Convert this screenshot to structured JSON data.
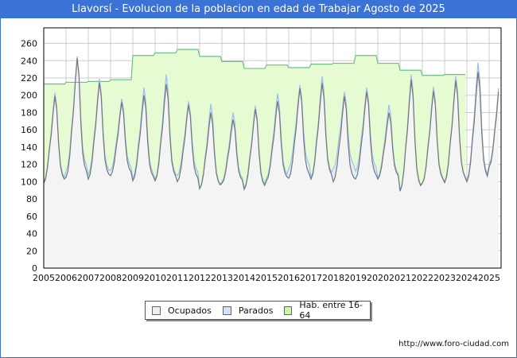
{
  "header": {
    "title": "Llavorsí - Evolucion de la poblacion en edad de Trabajar Agosto de 2025"
  },
  "legend": {
    "items": [
      {
        "label": "Ocupados",
        "color": "#eeeeee"
      },
      {
        "label": "Parados",
        "color": "#cfe3fb"
      },
      {
        "label": "Hab. entre 16-64",
        "color": "#ccf5a8"
      }
    ]
  },
  "footer": {
    "url": "http://www.foro-ciudad.com"
  },
  "colors": {
    "title_bg": "#3a72d6",
    "hab_fill": "#e6fbd2",
    "hab_line": "#6cbf8c",
    "parados_fill": "#e0eefc",
    "parados_line": "#9cc0ee",
    "ocupados_fill": "#f4f4f4",
    "ocupados_line": "#777777",
    "grid": "#cccccc"
  },
  "chart_data": {
    "type": "area",
    "title": "Llavorsí - Evolucion de la poblacion en edad de Trabajar Agosto de 2025",
    "xlabel": "",
    "ylabel": "",
    "ylim": [
      0,
      278
    ],
    "yticks": [
      0,
      20,
      40,
      60,
      80,
      100,
      120,
      140,
      160,
      180,
      200,
      220,
      240,
      260
    ],
    "xticks": [
      "2005",
      "2006",
      "2007",
      "2008",
      "2009",
      "2010",
      "2011",
      "2012",
      "2013",
      "2014",
      "2015",
      "2016",
      "2017",
      "2018",
      "2019",
      "2020",
      "2021",
      "2022",
      "2023",
      "2024",
      "2025"
    ],
    "grid": true,
    "legend_position": "bottom",
    "series": [
      {
        "name": "Hab. entre 16-64",
        "type": "step",
        "x": [
          2005,
          2006,
          2007,
          2008,
          2009,
          2010,
          2011,
          2012,
          2013,
          2014,
          2015,
          2016,
          2017,
          2018,
          2019,
          2020,
          2021,
          2022,
          2023
        ],
        "values": [
          213,
          215,
          216,
          218,
          246,
          249,
          253,
          245,
          239,
          231,
          235,
          232,
          236,
          237,
          246,
          237,
          229,
          223,
          224
        ],
        "ends_at": 2024
      },
      {
        "name": "Parados",
        "type": "monthly_peaks",
        "note": "Parados stacked on top of Ocupados; annual summer peak / winter trough",
        "x": [
          2005,
          2006,
          2007,
          2008,
          2009,
          2010,
          2011,
          2012,
          2013,
          2014,
          2015,
          2016,
          2017,
          2018,
          2019,
          2020,
          2021,
          2022,
          2023,
          2024,
          2025
        ],
        "peak": [
          203,
          245,
          219,
          196,
          209,
          224,
          193,
          190,
          180,
          188,
          202,
          212,
          222,
          204,
          209,
          189,
          224,
          210,
          222,
          238,
          230
        ],
        "trough": [
          100,
          112,
          108,
          113,
          104,
          103,
          107,
          92,
          100,
          93,
          104,
          115,
          105,
          115,
          112,
          105,
          90,
          99,
          100,
          102,
          120
        ]
      },
      {
        "name": "Ocupados",
        "type": "monthly_peaks",
        "x": [
          2005,
          2006,
          2007,
          2008,
          2009,
          2010,
          2011,
          2012,
          2013,
          2014,
          2015,
          2016,
          2017,
          2018,
          2019,
          2020,
          2021,
          2022,
          2023,
          2024,
          2025
        ],
        "peak": [
          199,
          243,
          215,
          192,
          200,
          213,
          189,
          180,
          172,
          184,
          193,
          208,
          214,
          199,
          204,
          180,
          218,
          205,
          217,
          227,
          226
        ],
        "trough": [
          98,
          105,
          103,
          107,
          101,
          101,
          100,
          92,
          98,
          91,
          101,
          104,
          103,
          100,
          103,
          103,
          89,
          98,
          99,
          100,
          117
        ]
      }
    ]
  }
}
